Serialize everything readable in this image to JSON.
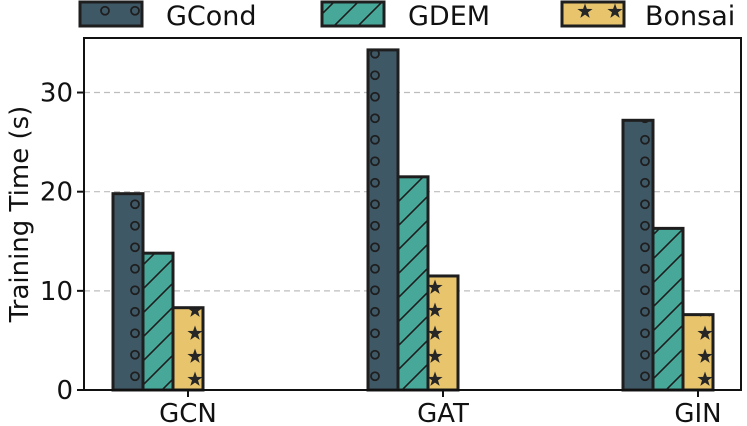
{
  "chart_data": {
    "type": "bar",
    "title": "",
    "xlabel": "",
    "ylabel": "Training Time (s)",
    "categories": [
      "GCN",
      "GAT",
      "GIN"
    ],
    "series": [
      {
        "name": "GCond",
        "values": [
          19.8,
          34.3,
          27.2
        ],
        "color": "#3f5866",
        "pattern": "circles"
      },
      {
        "name": "GDEM",
        "values": [
          13.8,
          21.5,
          16.3
        ],
        "color": "#47a89a",
        "pattern": "hatch"
      },
      {
        "name": "Bonsai",
        "values": [
          8.3,
          11.5,
          7.6
        ],
        "color": "#e8c46d",
        "pattern": "stars"
      }
    ],
    "ylim": [
      0,
      35.5
    ],
    "yticks": [
      0,
      10,
      20,
      30
    ],
    "grid": true,
    "legend": "top"
  }
}
